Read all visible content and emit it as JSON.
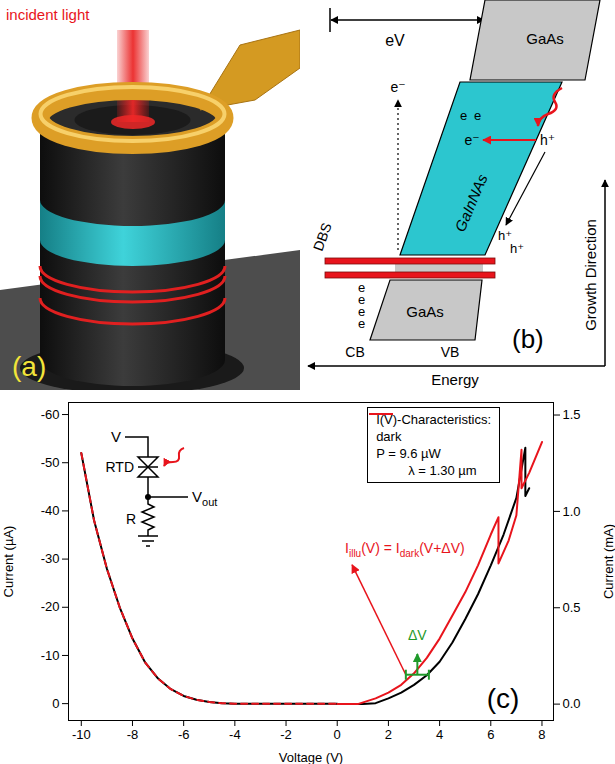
{
  "panels": {
    "a": {
      "label": "(a)",
      "incident_light": "incident light"
    },
    "b": {
      "label": "(b)",
      "voltage": "eV",
      "top_layer": "GaAs",
      "active_layer": "GaInNAs",
      "bottom_layer": "GaAs",
      "barrier": "DBS",
      "electrons_top": [
        "e",
        "e"
      ],
      "photo_electron": "e⁻",
      "escaped_electron": "e⁻",
      "electrons_bottom": [
        "e",
        "e",
        "e",
        "e"
      ],
      "holes": [
        "h⁺",
        "h⁺",
        "h⁺"
      ],
      "conduction_band": "CB",
      "valence_band": "VB",
      "x_axis": "Energy",
      "y_axis": "Growth Direction"
    }
  },
  "chart_data": {
    "type": "line",
    "label": "(c)",
    "xlabel": "Voltage (V)",
    "ylabel": "Current (µA)",
    "y2label": "Current (mA)",
    "xlim": [
      -10.5,
      8.45
    ],
    "xticks": [
      -10,
      -8,
      -6,
      -4,
      -2,
      0,
      2,
      4,
      6,
      8
    ],
    "ylim": [
      3.5,
      -62.5
    ],
    "yticks": [
      -60,
      -50,
      -40,
      -30,
      -20,
      -10,
      0
    ],
    "y2lim": [
      -0.085,
      1.565
    ],
    "y2ticks": [
      {
        "value": 0,
        "label": "0.0"
      },
      {
        "value": 0.5,
        "label": "0.5"
      },
      {
        "value": 1,
        "label": "1.0"
      },
      {
        "value": 1.5,
        "label": "1.5"
      }
    ],
    "legend": "upper right",
    "legend_title": "I(V)-Characteristics:",
    "legend_note": "λ = 1.30 µm",
    "series": [
      {
        "name": "dark",
        "color": "#000000",
        "axis": "y",
        "x": [
          -10,
          -9.5,
          -9,
          -8.5,
          -8,
          -7.5,
          -7,
          -6.5,
          -6,
          -5.5,
          -5,
          -4.5,
          -4,
          -3,
          -2,
          -1,
          0
        ],
        "values": [
          -52,
          -38,
          -28,
          -20,
          -13.5,
          -8.5,
          -5.2,
          -3,
          -1.6,
          -0.8,
          -0.35,
          -0.1,
          0,
          0,
          0,
          0,
          0
        ]
      },
      {
        "name": "P = 9.6 µW",
        "color": "#e8141c",
        "axis": "y",
        "line_style": "dashed",
        "x": [
          -10,
          -9.5,
          -9,
          -8.5,
          -8,
          -7.5,
          -7,
          -6.5,
          -6,
          -5.5,
          -5,
          -4.5,
          -4,
          -3,
          -2,
          -1,
          0
        ],
        "values": [
          -52,
          -38,
          -28,
          -20,
          -13.5,
          -8.5,
          -5.2,
          -3,
          -1.6,
          -0.8,
          -0.35,
          -0.1,
          0,
          0,
          0,
          0,
          0
        ]
      },
      {
        "name": "dark",
        "color": "#000000",
        "axis": "y2",
        "x": [
          0,
          1,
          1.5,
          2,
          2.5,
          3,
          3.5,
          4,
          4.5,
          5,
          5.5,
          6,
          6.5,
          7,
          7.35,
          7.35,
          7.5
        ],
        "values": [
          0,
          0,
          0.005,
          0.03,
          0.06,
          0.1,
          0.15,
          0.22,
          0.32,
          0.44,
          0.57,
          0.72,
          0.88,
          1.07,
          1.33,
          1.08,
          1.12
        ]
      },
      {
        "name": "P = 9.6 µW",
        "color": "#e8141c",
        "axis": "y2",
        "x": [
          0,
          0.8,
          1.5,
          2,
          2.5,
          3,
          3.5,
          4,
          4.5,
          5,
          5.5,
          6,
          6.3,
          6.3,
          6.7,
          7,
          7.2,
          7.2,
          7.5,
          8
        ],
        "values": [
          0,
          0,
          0.03,
          0.06,
          0.1,
          0.16,
          0.24,
          0.34,
          0.46,
          0.58,
          0.72,
          0.88,
          0.97,
          0.73,
          0.85,
          0.98,
          1.32,
          1.12,
          1.2,
          1.36
        ]
      }
    ],
    "annotations": [
      {
        "formula": [
          "I",
          "illu",
          "(V) = I",
          "dark",
          "(V+ΔV)"
        ],
        "color": "#e8141c",
        "x": 5.0,
        "y": 0.78,
        "arrow_from": [
          2.7,
          0.15
        ],
        "arrow_to": [
          0.6,
          0.72
        ],
        "axis": "y2"
      },
      {
        "text": "ΔV",
        "color": "#1f9a2a",
        "x_from": 2.7,
        "x_to": 3.6,
        "y": 0.15,
        "label_y": 0.33,
        "axis": "y2"
      }
    ],
    "circuit": {
      "source": "V",
      "device": "RTD",
      "output": "V",
      "output_subscript": "out",
      "resistor": "R"
    }
  }
}
